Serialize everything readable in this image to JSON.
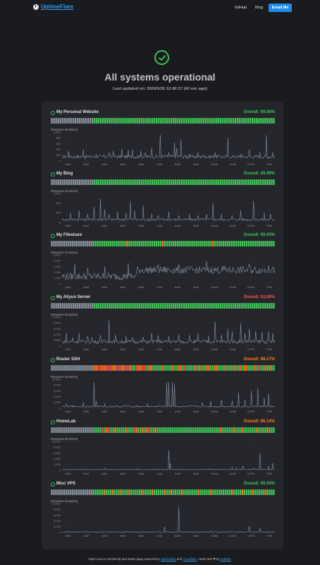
{
  "header": {
    "logo_text": "UptimeFlare",
    "nav": [
      "GitHub",
      "Blog"
    ],
    "email_label": "Email Me"
  },
  "hero": {
    "title": "All systems operational",
    "subtitle": "Last updated on: 2024/1/30 12:42:17 (43 sec ago)"
  },
  "chart_label": "Response times(ms)",
  "time_ticks": [
    "2AM",
    "3AM",
    "4AM",
    "5AM",
    "6AM",
    "7AM",
    "8AM",
    "9AM",
    "10AM",
    "11AM",
    "12PM",
    "1PM"
  ],
  "colors": {
    "ok": "#40c057",
    "warn": "#fd7e14",
    "bad": "#fa5252",
    "nodata": "#868e96",
    "line": "#8c8fa3"
  },
  "monitors": [
    {
      "name": "My Personal Website",
      "overall": "Overall: 99.98%",
      "overall_color": "#40c057",
      "status_pattern": "nnnnnnnnnnnnnnnnnnnnggggggggggggggggggggggggggggggggggggggggggggggggggggggggggggggggggggggggggggggggggggg",
      "y_ticks": [
        "1,000",
        "800",
        "600",
        "400",
        "200",
        "0"
      ],
      "y_max": 1000,
      "chart_data": {
        "type": "line",
        "baseline": 150,
        "spikes": [
          [
            0.03,
            350
          ],
          [
            0.1,
            400
          ],
          [
            0.16,
            250
          ],
          [
            0.22,
            300
          ],
          [
            0.24,
            350
          ],
          [
            0.28,
            420
          ],
          [
            0.31,
            380
          ],
          [
            0.33,
            400
          ],
          [
            0.37,
            350
          ],
          [
            0.39,
            300
          ],
          [
            0.42,
            450
          ],
          [
            0.46,
            900
          ],
          [
            0.5,
            300
          ],
          [
            0.53,
            650
          ],
          [
            0.54,
            450
          ],
          [
            0.56,
            750
          ],
          [
            0.6,
            250
          ],
          [
            0.64,
            300
          ],
          [
            0.67,
            200
          ],
          [
            0.72,
            300
          ],
          [
            0.78,
            800
          ],
          [
            0.84,
            250
          ],
          [
            0.88,
            400
          ],
          [
            0.93,
            300
          ],
          [
            0.96,
            900
          ],
          [
            0.99,
            300
          ]
        ]
      }
    },
    {
      "name": "My Blog",
      "overall": "Overall: 99.99%",
      "overall_color": "#40c057",
      "status_pattern": "nnnnnnnnnnnnnnnnnnnnggggggggggggggggggggggggggggggggggggggggggggggggggggggggggggggggggggggggggggggggggggg",
      "y_ticks": [
        "1,200",
        "800",
        "400",
        "0"
      ],
      "y_max": 1200,
      "chart_data": {
        "type": "line",
        "baseline": 120,
        "spikes": [
          [
            0.04,
            400
          ],
          [
            0.08,
            500
          ],
          [
            0.12,
            350
          ],
          [
            0.15,
            650
          ],
          [
            0.18,
            1000
          ],
          [
            0.2,
            550
          ],
          [
            0.22,
            350
          ],
          [
            0.26,
            450
          ],
          [
            0.3,
            400
          ],
          [
            0.32,
            900
          ],
          [
            0.34,
            500
          ],
          [
            0.38,
            700
          ],
          [
            0.42,
            350
          ],
          [
            0.45,
            300
          ],
          [
            0.5,
            450
          ],
          [
            0.55,
            300
          ],
          [
            0.6,
            350
          ],
          [
            0.64,
            300
          ],
          [
            0.68,
            350
          ],
          [
            0.71,
            800
          ],
          [
            0.75,
            350
          ],
          [
            0.8,
            300
          ],
          [
            0.84,
            500
          ],
          [
            0.9,
            900
          ],
          [
            0.95,
            400
          ],
          [
            0.98,
            350
          ]
        ]
      }
    },
    {
      "name": "My Fileshare",
      "overall": "Overall: 99.93%",
      "overall_color": "#40c057",
      "status_pattern": "nnnnnnnnnnnnnnnnnnnnggggggggggggggggwggggggggggggggggwgggggggggggggggggggggggwggggggggggggggggggggggggggggg",
      "y_ticks": [
        "5,000",
        "4,000",
        "3,000",
        "2,000",
        "1,000",
        "0"
      ],
      "y_max": 5000,
      "chart_data": {
        "type": "line",
        "noisy": true,
        "baseline": 1300,
        "noise_amp": 900,
        "late_level": 2400,
        "spikes": [
          [
            0.06,
            3500
          ],
          [
            0.12,
            2800
          ],
          [
            0.2,
            3000
          ],
          [
            0.31,
            3600
          ],
          [
            0.45,
            3300
          ],
          [
            0.55,
            3400
          ],
          [
            0.68,
            3900
          ],
          [
            0.76,
            3100
          ],
          [
            0.88,
            3500
          ],
          [
            0.97,
            3200
          ]
        ]
      }
    },
    {
      "name": "My Aliyun Server",
      "overall": "Overall: 93.69%",
      "overall_color": "#fa5252",
      "status_pattern": "nnnnnnnnnnnnnnnnnnnnggggggggggggggggggggggggggggggggggggggggggggggggggggggggggggggggggggggggggggggggggggg",
      "y_ticks": [
        "10,000",
        "8,000",
        "6,000",
        "4,000",
        "2,000",
        "0"
      ],
      "y_max": 10000,
      "chart_data": {
        "type": "line",
        "baseline": 1500,
        "spikes": [
          [
            0.02,
            4500
          ],
          [
            0.05,
            3000
          ],
          [
            0.08,
            4500
          ],
          [
            0.12,
            3500
          ],
          [
            0.14,
            3000
          ],
          [
            0.18,
            3800
          ],
          [
            0.22,
            9000
          ],
          [
            0.25,
            4000
          ],
          [
            0.3,
            3500
          ],
          [
            0.33,
            3000
          ],
          [
            0.38,
            3200
          ],
          [
            0.42,
            4500
          ],
          [
            0.45,
            3800
          ],
          [
            0.5,
            3500
          ],
          [
            0.55,
            4000
          ],
          [
            0.6,
            3800
          ],
          [
            0.64,
            4500
          ],
          [
            0.69,
            3500
          ],
          [
            0.72,
            8500
          ],
          [
            0.75,
            4000
          ],
          [
            0.78,
            6000
          ],
          [
            0.8,
            5000
          ],
          [
            0.84,
            8000
          ],
          [
            0.86,
            4500
          ],
          [
            0.88,
            6000
          ],
          [
            0.91,
            5200
          ],
          [
            0.94,
            4800
          ],
          [
            0.97,
            5000
          ],
          [
            0.99,
            4500
          ]
        ]
      }
    },
    {
      "name": "Router SSH",
      "overall": "Overall: 98.17%",
      "overall_color": "#fd7e14",
      "status_pattern": "nnnnnnnnnnnnnnnnnnnnwwbbwwbbbwwbbwwbbwggbwwbbgwwggggwggggwggwwgbggggwgwggwwggwwgggwgggwggwgwwgggwgbggwgwgg",
      "y_ticks": [
        "10,000",
        "8,000",
        "6,000",
        "4,000",
        "2,000",
        "0"
      ],
      "y_max": 10000,
      "chart_data": {
        "type": "line",
        "baseline": 600,
        "spikes": [
          [
            0.02,
            1500
          ],
          [
            0.05,
            1000
          ],
          [
            0.1,
            2000
          ],
          [
            0.15,
            9000
          ],
          [
            0.16,
            2500
          ],
          [
            0.2,
            1500
          ],
          [
            0.26,
            1000
          ],
          [
            0.3,
            1200
          ],
          [
            0.35,
            1000
          ],
          [
            0.4,
            1500
          ],
          [
            0.45,
            1000
          ],
          [
            0.49,
            9000
          ],
          [
            0.5,
            9000
          ],
          [
            0.52,
            9000
          ],
          [
            0.53,
            8500
          ],
          [
            0.6,
            1000
          ],
          [
            0.66,
            2000
          ],
          [
            0.7,
            2500
          ],
          [
            0.75,
            3000
          ],
          [
            0.8,
            2500
          ],
          [
            0.83,
            5500
          ],
          [
            0.86,
            3000
          ],
          [
            0.89,
            6000
          ],
          [
            0.92,
            7000
          ],
          [
            0.95,
            3500
          ],
          [
            0.97,
            5000
          ]
        ]
      }
    },
    {
      "name": "HomeLab",
      "overall": "Overall: 96.14%",
      "overall_color": "#fd7e14",
      "status_pattern": "nnnnnnnnnnnnnnnnnnnnggggbgwbggwggggwgggbwggwgwbggwggggggggggggggggggggggggggggggwgggggwgggwggggggwggggwggg",
      "y_ticks": [
        "10,000",
        "8,000",
        "6,000",
        "4,000",
        "2,000",
        "0"
      ],
      "y_max": 10000,
      "chart_data": {
        "type": "line",
        "baseline": 300,
        "spikes": [
          [
            0.2,
            800
          ],
          [
            0.35,
            600
          ],
          [
            0.5,
            7000
          ],
          [
            0.51,
            2500
          ],
          [
            0.7,
            600
          ],
          [
            0.8,
            1200
          ],
          [
            0.82,
            1000
          ],
          [
            0.85,
            1500
          ],
          [
            0.9,
            800
          ],
          [
            0.93,
            6000
          ],
          [
            0.97,
            1500
          ],
          [
            0.99,
            2500
          ]
        ]
      }
    },
    {
      "name": "Misc VPS",
      "overall": "Overall: 99.50%",
      "overall_color": "#40c057",
      "status_pattern": "nnnnnnnnnnnnnnnnnnnngggggwgggwgggwgggwgggggwggggwgggggwggwggggwgggggggwgggggwgggggggggwggggwggggwgggggwgggg",
      "y_ticks": [
        "10,000",
        "8,000",
        "6,000",
        "4,000",
        "2,000",
        "0"
      ],
      "y_max": 10000,
      "chart_data": {
        "type": "line",
        "baseline": 200,
        "spikes": [
          [
            0.55,
            9000
          ],
          [
            0.48,
            2000
          ],
          [
            0.88,
            2200
          ],
          [
            0.93,
            1500
          ],
          [
            0.3,
            500
          ],
          [
            0.7,
            600
          ]
        ]
      }
    }
  ],
  "footer": {
    "prefix": "Open-source monitoring and status page powered by ",
    "link1": "Uptimeflare",
    "mid": " and ",
    "link2": "Cloudflare",
    "suffix": ", made with ❤ by ",
    "link3": "lyc8503",
    "end": "."
  }
}
